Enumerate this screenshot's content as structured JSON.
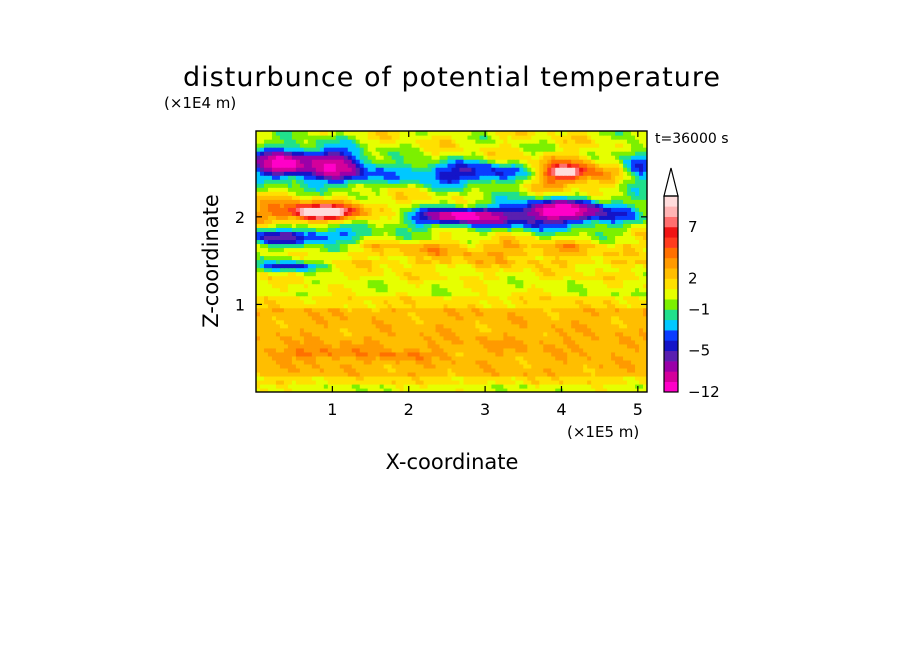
{
  "chart_data": {
    "type": "heatmap",
    "title": "disturbunce of potential temperature",
    "time_label": "t=36000 s",
    "xlabel": "X-coordinate",
    "ylabel": "Z-coordinate",
    "x_scale_label": "(×1E5 m)",
    "y_scale_label": "(×1E4 m)",
    "xlim": [
      0,
      5.12
    ],
    "ylim": [
      0,
      2.98
    ],
    "x_ticks": [
      {
        "value": 1,
        "label": "1"
      },
      {
        "value": 2,
        "label": "2"
      },
      {
        "value": 3,
        "label": "3"
      },
      {
        "value": 4,
        "label": "4"
      },
      {
        "value": 5,
        "label": "5"
      }
    ],
    "y_ticks": [
      {
        "value": 1,
        "label": "1"
      },
      {
        "value": 2,
        "label": "2"
      }
    ],
    "colorbar": {
      "levels": [
        -12,
        -10,
        -8,
        -6,
        -5,
        -4,
        -3,
        -2,
        -1,
        0,
        1,
        2,
        3,
        4,
        5,
        6,
        7,
        8,
        9,
        10
      ],
      "colors": [
        "#ff00c8",
        "#d4009b",
        "#9a00a8",
        "#5a1fb0",
        "#1414c8",
        "#0a3cff",
        "#00c8ff",
        "#20e08c",
        "#7cf000",
        "#e6ff00",
        "#ffe000",
        "#ffbe00",
        "#ff9a00",
        "#ff7000",
        "#ff3c1e",
        "#f01414",
        "#ff6e6e",
        "#ffb4b4",
        "#ffdcdc"
      ],
      "labels": [
        {
          "value": 7,
          "label": "7"
        },
        {
          "value": 2,
          "label": "2"
        },
        {
          "value": -1,
          "label": "−1"
        },
        {
          "value": -5,
          "label": "−5"
        },
        {
          "value": -12,
          "label": "−12"
        }
      ],
      "extend": "max"
    },
    "features": [
      {
        "value": -6,
        "x": 0.5,
        "z": 2.62,
        "sx": 0.9,
        "sz": 0.22
      },
      {
        "value": -5,
        "x": 1.1,
        "z": 2.55,
        "sx": 0.35,
        "sz": 0.22
      },
      {
        "value": -6,
        "x": 0.35,
        "z": 2.6,
        "sx": 0.25,
        "sz": 0.12
      },
      {
        "value": 6,
        "x": 0.8,
        "z": 2.07,
        "sx": 1.0,
        "sz": 0.13
      },
      {
        "value": 8,
        "x": 0.85,
        "z": 2.05,
        "sx": 0.35,
        "sz": 0.07
      },
      {
        "value": -5,
        "x": 0.55,
        "z": 1.78,
        "sx": 1.0,
        "sz": 0.12
      },
      {
        "value": -5,
        "x": 0.45,
        "z": 1.45,
        "sx": 0.45,
        "sz": 0.07
      },
      {
        "value": -5,
        "x": 2.8,
        "z": 2.5,
        "sx": 1.2,
        "sz": 0.15
      },
      {
        "value": -5,
        "x": 2.65,
        "z": 2.0,
        "sx": 1.1,
        "sz": 0.13
      },
      {
        "value": -6,
        "x": 2.7,
        "z": 2.02,
        "sx": 0.35,
        "sz": 0.06
      },
      {
        "value": -5,
        "x": 4.05,
        "z": 2.05,
        "sx": 1.1,
        "sz": 0.2
      },
      {
        "value": -6,
        "x": 4.0,
        "z": 2.08,
        "sx": 0.45,
        "sz": 0.1
      },
      {
        "value": 7,
        "x": 4.05,
        "z": 2.5,
        "sx": 0.6,
        "sz": 0.18
      },
      {
        "value": 8,
        "x": 4.05,
        "z": 2.52,
        "sx": 0.2,
        "sz": 0.06
      },
      {
        "value": -4,
        "x": 5.0,
        "z": 2.6,
        "sx": 0.25,
        "sz": 0.25
      },
      {
        "value": 3,
        "x": 3.0,
        "z": 1.6,
        "sx": 2.5,
        "sz": 0.12
      },
      {
        "value": 3,
        "x": 0.9,
        "z": 0.5,
        "sx": 1.5,
        "sz": 0.15
      },
      {
        "value": 4,
        "x": 0.8,
        "z": 0.45,
        "sx": 0.7,
        "sz": 0.06
      },
      {
        "value": 4,
        "x": 1.9,
        "z": 0.42,
        "sx": 0.4,
        "sz": 0.06
      },
      {
        "value": 3,
        "x": 3.7,
        "z": 0.55,
        "sx": 1.5,
        "sz": 0.1
      }
    ]
  }
}
